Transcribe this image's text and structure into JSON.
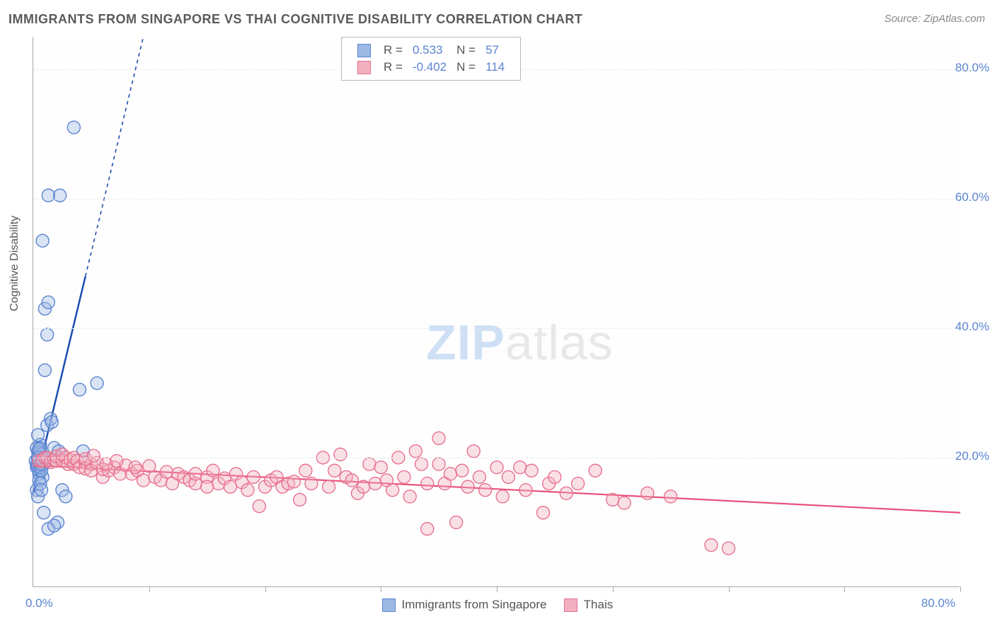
{
  "title": "IMMIGRANTS FROM SINGAPORE VS THAI COGNITIVE DISABILITY CORRELATION CHART",
  "source": "Source: ZipAtlas.com",
  "yaxis_title": "Cognitive Disability",
  "watermark_bold": "ZIP",
  "watermark_light": "atlas",
  "chart": {
    "type": "scatter-correlation",
    "background_color": "#ffffff",
    "grid_color": "#ececec",
    "axis_color": "#a9a9a9",
    "tick_label_color": "#5b84d0",
    "point_radius": 9,
    "xlim": [
      0,
      80
    ],
    "ylim": [
      0,
      85
    ],
    "x_ticks": [
      0,
      10,
      20,
      30,
      40,
      50,
      60,
      70,
      80
    ],
    "y_gridlines": [
      20,
      40,
      60,
      80
    ],
    "y_labels": [
      "20.0%",
      "40.0%",
      "60.0%",
      "80.0%"
    ],
    "x_label_min": "0.0%",
    "x_label_max": "80.0%",
    "series": [
      {
        "key": "singapore",
        "name": "Immigrants from Singapore",
        "fill_color": "#9cb8e4",
        "stroke_color": "#5b84d0",
        "trend_color": "#1c4db0",
        "trend_width": 2.5,
        "r": "0.533",
        "n": "57",
        "trend": {
          "x1": 0.0,
          "y1": 14.5,
          "x2": 4.5,
          "y2": 48.0,
          "x1d": 4.5,
          "y1d": 48.0,
          "x2d": 9.5,
          "y2d": 85.0
        },
        "points": [
          [
            0.3,
            18.5
          ],
          [
            0.4,
            19.8
          ],
          [
            0.5,
            20.0
          ],
          [
            0.4,
            21.0
          ],
          [
            0.5,
            17.5
          ],
          [
            0.3,
            19.0
          ],
          [
            0.6,
            22.0
          ],
          [
            0.6,
            20.3
          ],
          [
            0.45,
            20.5
          ],
          [
            0.35,
            18.8
          ],
          [
            0.4,
            23.5
          ],
          [
            0.5,
            18.0
          ],
          [
            0.3,
            21.5
          ],
          [
            0.7,
            19.2
          ],
          [
            0.6,
            21.5
          ],
          [
            0.2,
            19.5
          ],
          [
            0.8,
            17.0
          ],
          [
            0.9,
            11.5
          ],
          [
            0.5,
            16.5
          ],
          [
            0.6,
            18.5
          ],
          [
            0.55,
            19.7
          ],
          [
            0.3,
            15.0
          ],
          [
            0.4,
            14.0
          ],
          [
            1.2,
            25.0
          ],
          [
            1.5,
            26.0
          ],
          [
            1.8,
            21.5
          ],
          [
            1.6,
            25.5
          ],
          [
            2.0,
            19.5
          ],
          [
            2.2,
            21.0
          ],
          [
            2.5,
            15.0
          ],
          [
            2.8,
            14.0
          ],
          [
            2.1,
            10.0
          ],
          [
            1.3,
            9.0
          ],
          [
            1.8,
            9.5
          ],
          [
            4.0,
            30.5
          ],
          [
            4.3,
            21.0
          ],
          [
            1.0,
            33.5
          ],
          [
            1.2,
            39.0
          ],
          [
            1.0,
            43.0
          ],
          [
            1.3,
            44.0
          ],
          [
            0.8,
            53.5
          ],
          [
            1.3,
            60.5
          ],
          [
            2.3,
            60.5
          ],
          [
            3.5,
            71.0
          ],
          [
            0.7,
            20.5
          ],
          [
            0.9,
            19.0
          ],
          [
            0.6,
            16.0
          ],
          [
            0.7,
            15.0
          ],
          [
            5.5,
            31.5
          ],
          [
            0.5,
            19.3
          ],
          [
            0.4,
            18.7
          ],
          [
            0.5,
            20.8
          ],
          [
            0.7,
            18.0
          ],
          [
            0.85,
            20.0
          ],
          [
            0.6,
            19.0
          ],
          [
            0.4,
            20.0
          ],
          [
            0.5,
            21.3
          ]
        ]
      },
      {
        "key": "thais",
        "name": "Thais",
        "fill_color": "#f2b0c1",
        "stroke_color": "#e8718f",
        "trend_color": "#e8517b",
        "trend_width": 2.2,
        "r": "-0.402",
        "n": "114",
        "trend": {
          "x1": 0.0,
          "y1": 18.8,
          "x2": 80.0,
          "y2": 11.5
        },
        "points": [
          [
            0.5,
            19.5
          ],
          [
            0.8,
            19.5
          ],
          [
            1.0,
            20.0
          ],
          [
            1.2,
            20.0
          ],
          [
            1.5,
            19.3
          ],
          [
            1.8,
            19.6
          ],
          [
            2.0,
            19.5
          ],
          [
            2.0,
            20.2
          ],
          [
            2.5,
            19.6
          ],
          [
            2.5,
            20.5
          ],
          [
            2.8,
            20.0
          ],
          [
            3.0,
            19.0
          ],
          [
            3.2,
            19.7
          ],
          [
            3.5,
            19.0
          ],
          [
            3.5,
            20.0
          ],
          [
            3.8,
            19.5
          ],
          [
            4.0,
            18.5
          ],
          [
            4.5,
            19.3
          ],
          [
            4.5,
            18.3
          ],
          [
            5.0,
            19.0
          ],
          [
            5.0,
            18.0
          ],
          [
            5.5,
            19.2
          ],
          [
            6.0,
            17.0
          ],
          [
            6.0,
            18.2
          ],
          [
            6.5,
            18.0
          ],
          [
            7.0,
            18.5
          ],
          [
            7.5,
            17.5
          ],
          [
            8.0,
            18.8
          ],
          [
            8.5,
            17.5
          ],
          [
            9.0,
            18.0
          ],
          [
            9.5,
            16.5
          ],
          [
            10.0,
            18.7
          ],
          [
            10.5,
            17.0
          ],
          [
            11.0,
            16.5
          ],
          [
            11.5,
            17.8
          ],
          [
            12.0,
            16.0
          ],
          [
            12.5,
            17.5
          ],
          [
            13.0,
            17.0
          ],
          [
            13.5,
            16.5
          ],
          [
            14.0,
            16.0
          ],
          [
            14.0,
            17.5
          ],
          [
            15.0,
            17.0
          ],
          [
            15.0,
            15.5
          ],
          [
            15.5,
            18.0
          ],
          [
            16.0,
            16.0
          ],
          [
            16.5,
            16.8
          ],
          [
            17.0,
            15.5
          ],
          [
            17.5,
            17.5
          ],
          [
            18.0,
            16.2
          ],
          [
            18.5,
            15.0
          ],
          [
            19.0,
            17.0
          ],
          [
            19.5,
            12.5
          ],
          [
            20.0,
            15.5
          ],
          [
            20.5,
            16.5
          ],
          [
            21.0,
            17.0
          ],
          [
            21.5,
            15.5
          ],
          [
            22.0,
            16.0
          ],
          [
            22.5,
            16.3
          ],
          [
            23.0,
            13.5
          ],
          [
            23.5,
            18.0
          ],
          [
            24.0,
            16.0
          ],
          [
            25.0,
            20.0
          ],
          [
            25.5,
            15.5
          ],
          [
            26.0,
            18.0
          ],
          [
            26.5,
            20.5
          ],
          [
            27.0,
            17.0
          ],
          [
            27.5,
            16.5
          ],
          [
            28.0,
            14.5
          ],
          [
            28.5,
            15.5
          ],
          [
            29.0,
            19.0
          ],
          [
            29.5,
            16.0
          ],
          [
            30.0,
            18.5
          ],
          [
            30.5,
            16.5
          ],
          [
            31.0,
            15.0
          ],
          [
            31.5,
            20.0
          ],
          [
            32.0,
            17.0
          ],
          [
            32.5,
            14.0
          ],
          [
            33.0,
            21.0
          ],
          [
            33.5,
            19.0
          ],
          [
            34.0,
            16.0
          ],
          [
            34.0,
            9.0
          ],
          [
            35.0,
            19.0
          ],
          [
            35.0,
            23.0
          ],
          [
            35.5,
            16.0
          ],
          [
            36.0,
            17.5
          ],
          [
            36.5,
            10.0
          ],
          [
            37.0,
            18.0
          ],
          [
            37.5,
            15.5
          ],
          [
            38.0,
            21.0
          ],
          [
            38.5,
            17.0
          ],
          [
            39.0,
            15.0
          ],
          [
            40.0,
            18.5
          ],
          [
            40.5,
            14.0
          ],
          [
            41.0,
            17.0
          ],
          [
            42.0,
            18.5
          ],
          [
            42.5,
            15.0
          ],
          [
            43.0,
            18.0
          ],
          [
            44.0,
            11.5
          ],
          [
            44.5,
            16.0
          ],
          [
            45.0,
            17.0
          ],
          [
            46.0,
            14.5
          ],
          [
            47.0,
            16.0
          ],
          [
            48.5,
            18.0
          ],
          [
            50.0,
            13.5
          ],
          [
            51.0,
            13.0
          ],
          [
            53.0,
            14.5
          ],
          [
            55.0,
            14.0
          ],
          [
            58.5,
            6.5
          ],
          [
            60.0,
            6.0
          ],
          [
            4.5,
            19.8
          ],
          [
            5.2,
            20.3
          ],
          [
            6.3,
            19.0
          ],
          [
            7.2,
            19.5
          ],
          [
            8.8,
            18.5
          ]
        ]
      }
    ]
  },
  "legend_top": {
    "r_label": "R  =",
    "n_label": "N  ="
  },
  "legend_bottom": {
    "series1": "Immigrants from Singapore",
    "series2": "Thais"
  }
}
